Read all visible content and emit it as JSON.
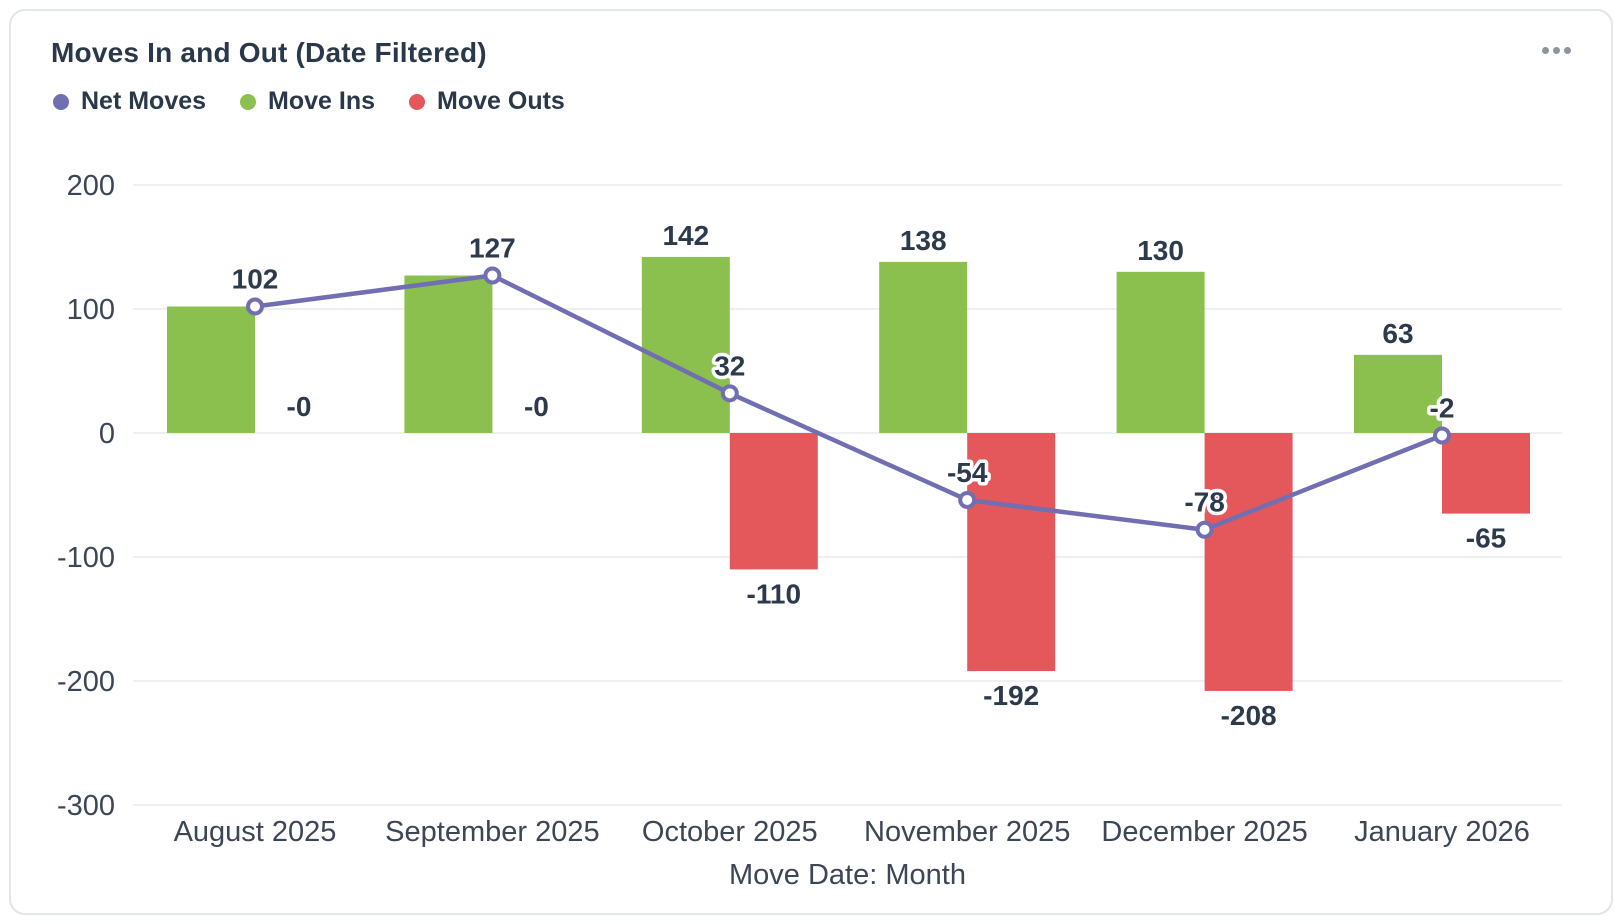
{
  "card": {
    "title": "Moves In and Out (Date Filtered)"
  },
  "legend": [
    {
      "label": "Net Moves",
      "color": "#716eb2"
    },
    {
      "label": "Move Ins",
      "color": "#8bc04f"
    },
    {
      "label": "Move Outs",
      "color": "#e4575b"
    }
  ],
  "chart_data": {
    "type": "combo",
    "title": "Moves In and Out (Date Filtered)",
    "categories": [
      "August 2025",
      "September 2025",
      "October 2025",
      "November 2025",
      "December 2025",
      "January 2026"
    ],
    "xlabel": "Move Date: Month",
    "ylabel": "",
    "ylim": [
      -300,
      200
    ],
    "y_ticks": [
      200,
      100,
      0,
      -100,
      -200,
      -300
    ],
    "grid": true,
    "legend_position": "top-left",
    "series": [
      {
        "name": "Net Moves",
        "type": "line",
        "color": "#716eb2",
        "values": [
          102,
          127,
          32,
          -54,
          -78,
          -2
        ],
        "labels": [
          "102",
          "127",
          "32",
          "-54",
          "-78",
          "-2"
        ]
      },
      {
        "name": "Move Ins",
        "type": "bar",
        "color": "#8bc04f",
        "values": [
          102,
          127,
          142,
          138,
          130,
          63
        ],
        "labels": [
          "102",
          "127",
          "142",
          "138",
          "130",
          "63"
        ]
      },
      {
        "name": "Move Outs",
        "type": "bar",
        "color": "#e4575b",
        "values": [
          0,
          0,
          -110,
          -192,
          -208,
          -65
        ],
        "labels": [
          "-0",
          "-0",
          "-110",
          "-192",
          "-208",
          "-65"
        ]
      }
    ],
    "colors": {
      "data_label": "#2d3a4c",
      "axis_text": "#3c4654",
      "gridline": "#e9ebee"
    }
  }
}
